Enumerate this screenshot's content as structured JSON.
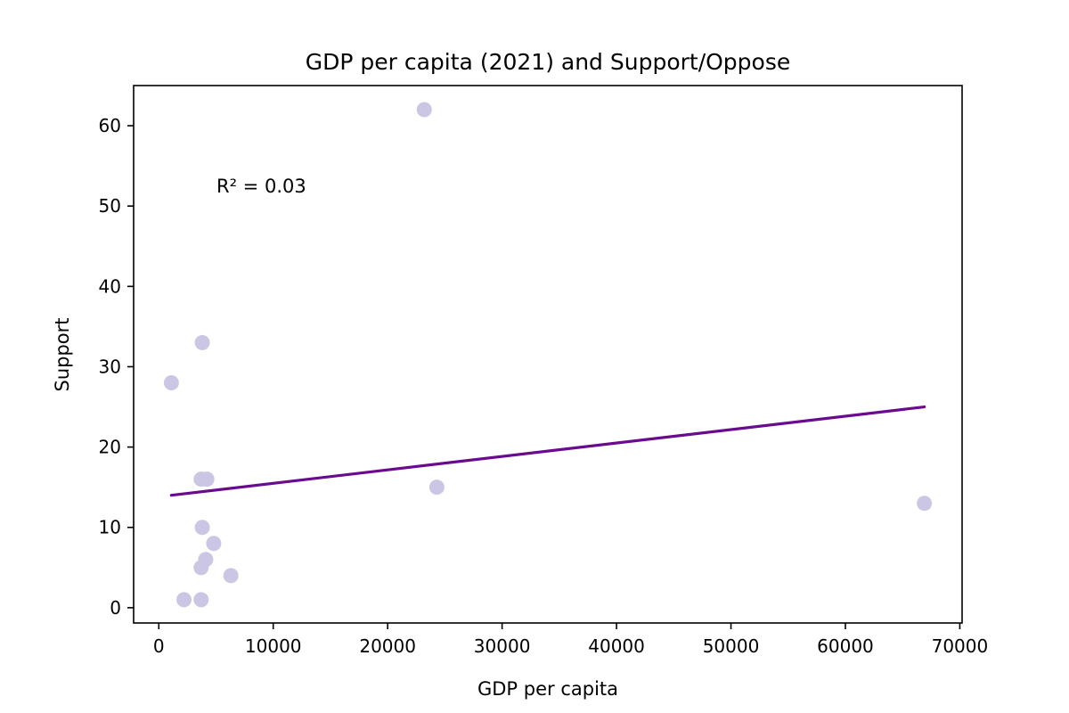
{
  "chart_data": {
    "type": "scatter",
    "title": "GDP per capita (2021) and Support/Oppose",
    "xlabel": "GDP per capita",
    "ylabel": "Support",
    "xlim": [
      -2200,
      70200
    ],
    "ylim": [
      -1.9,
      65
    ],
    "xticks": [
      0,
      10000,
      20000,
      30000,
      40000,
      50000,
      60000,
      70000
    ],
    "xtick_labels": [
      "0",
      "10000",
      "20000",
      "30000",
      "40000",
      "50000",
      "60000",
      "70000"
    ],
    "yticks": [
      0,
      10,
      20,
      30,
      40,
      50,
      60
    ],
    "ytick_labels": [
      "0",
      "10",
      "20",
      "30",
      "40",
      "50",
      "60"
    ],
    "grid": false,
    "point_color": "#cbc6e3",
    "line_color": "#6a0a8f",
    "points": [
      {
        "x": 23200,
        "y": 62
      },
      {
        "x": 3800,
        "y": 33
      },
      {
        "x": 1100,
        "y": 28
      },
      {
        "x": 3700,
        "y": 16
      },
      {
        "x": 4200,
        "y": 16
      },
      {
        "x": 24300,
        "y": 15
      },
      {
        "x": 66900,
        "y": 13
      },
      {
        "x": 3800,
        "y": 10
      },
      {
        "x": 4800,
        "y": 8
      },
      {
        "x": 4100,
        "y": 6
      },
      {
        "x": 3700,
        "y": 5
      },
      {
        "x": 6300,
        "y": 4
      },
      {
        "x": 2200,
        "y": 1
      },
      {
        "x": 3700,
        "y": 1
      }
    ],
    "trendline": {
      "x": [
        1100,
        66900
      ],
      "y": [
        14,
        25
      ]
    },
    "annotation": "R² = 0.03"
  }
}
